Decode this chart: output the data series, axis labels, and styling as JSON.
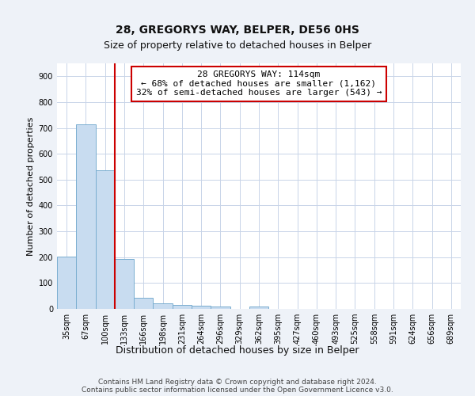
{
  "title": "28, GREGORYS WAY, BELPER, DE56 0HS",
  "subtitle": "Size of property relative to detached houses in Belper",
  "xlabel": "Distribution of detached houses by size in Belper",
  "ylabel": "Number of detached properties",
  "bar_labels": [
    "35sqm",
    "67sqm",
    "100sqm",
    "133sqm",
    "166sqm",
    "198sqm",
    "231sqm",
    "264sqm",
    "296sqm",
    "329sqm",
    "362sqm",
    "395sqm",
    "427sqm",
    "460sqm",
    "493sqm",
    "525sqm",
    "558sqm",
    "591sqm",
    "624sqm",
    "656sqm",
    "689sqm"
  ],
  "bar_values": [
    202,
    714,
    537,
    193,
    44,
    20,
    15,
    12,
    10,
    0,
    10,
    0,
    0,
    0,
    0,
    0,
    0,
    0,
    0,
    0,
    0
  ],
  "bar_fill_color": "#c8dcf0",
  "bar_edge_color": "#7aaed0",
  "vline_color": "#cc0000",
  "vline_x_index": 2,
  "annotation_text": "28 GREGORYS WAY: 114sqm\n← 68% of detached houses are smaller (1,162)\n32% of semi-detached houses are larger (543) →",
  "annotation_box_facecolor": "#ffffff",
  "annotation_box_edgecolor": "#cc0000",
  "ylim": [
    0,
    950
  ],
  "yticks": [
    0,
    100,
    200,
    300,
    400,
    500,
    600,
    700,
    800,
    900
  ],
  "footer_text": "Contains HM Land Registry data © Crown copyright and database right 2024.\nContains public sector information licensed under the Open Government Licence v3.0.",
  "background_color": "#eef2f8",
  "plot_bg_color": "#ffffff",
  "grid_color": "#c8d4e8",
  "title_fontsize": 10,
  "subtitle_fontsize": 9,
  "xlabel_fontsize": 9,
  "ylabel_fontsize": 8,
  "tick_fontsize": 7,
  "annotation_fontsize": 8,
  "footer_fontsize": 6.5
}
